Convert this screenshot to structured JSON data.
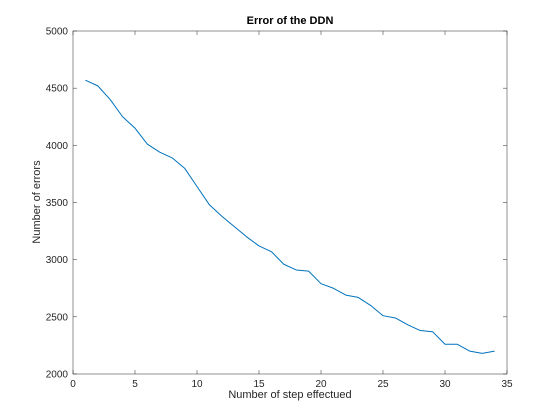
{
  "chart_data": {
    "type": "line",
    "title": "Error of the DDN",
    "xlabel": "Number of step effectued",
    "ylabel": "Number of errors",
    "xlim": [
      0,
      35
    ],
    "ylim": [
      2000,
      5000
    ],
    "xticks": [
      0,
      5,
      10,
      15,
      20,
      25,
      30,
      35
    ],
    "yticks": [
      2000,
      2500,
      3000,
      3500,
      4000,
      4500,
      5000
    ],
    "grid": false,
    "line_color": "#0072bd",
    "series": [
      {
        "x": [
          1,
          2,
          3,
          4,
          5,
          6,
          7,
          8,
          9,
          10,
          11,
          12,
          13,
          14,
          15,
          16,
          17,
          18,
          19,
          20,
          21,
          22,
          23,
          24,
          25,
          26,
          27,
          28,
          29,
          30,
          31,
          32,
          33,
          34
        ],
        "values": [
          4570,
          4520,
          4400,
          4250,
          4150,
          4010,
          3940,
          3890,
          3800,
          3640,
          3480,
          3380,
          3290,
          3200,
          3120,
          3070,
          2960,
          2910,
          2900,
          2790,
          2750,
          2690,
          2670,
          2600,
          2510,
          2490,
          2430,
          2380,
          2370,
          2260,
          2260,
          2200,
          2180,
          2200
        ]
      }
    ]
  }
}
